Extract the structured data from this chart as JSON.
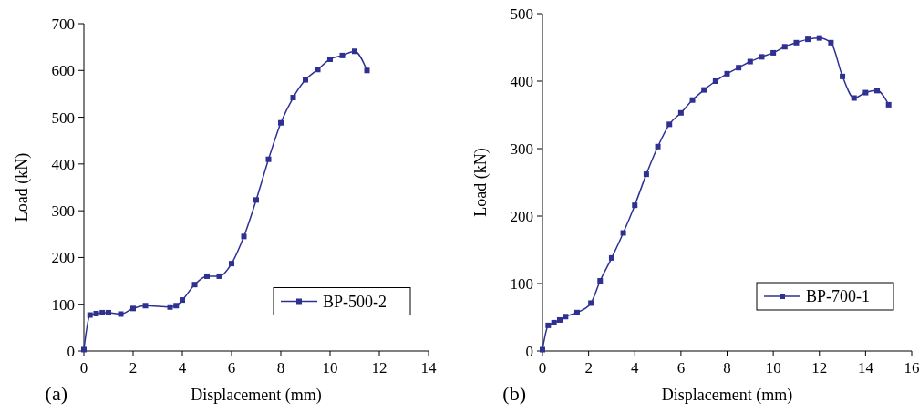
{
  "chart_data": [
    {
      "type": "line",
      "xlabel": "Displacement (mm)",
      "ylabel": "Load (kN)",
      "annotations": [
        "(a)"
      ],
      "xlim": [
        0,
        14
      ],
      "xticks": [
        0,
        2,
        4,
        6,
        8,
        10,
        12,
        14
      ],
      "ylim": [
        0,
        700
      ],
      "yticks": [
        0,
        100,
        200,
        300,
        400,
        500,
        600,
        700
      ],
      "legend": "right",
      "marker": "square",
      "grid": false,
      "series": [
        {
          "name": "BP-500-2",
          "color": "#2e3192",
          "x": [
            0,
            0.25,
            0.5,
            0.75,
            1,
            1.5,
            2,
            2.5,
            3.5,
            3.75,
            4,
            4.5,
            5,
            5.5,
            6,
            6.5,
            7,
            7.5,
            8,
            8.5,
            9,
            9.5,
            10,
            10.5,
            11,
            11.5
          ],
          "values": [
            3,
            77,
            80,
            82,
            82,
            79,
            91,
            97,
            94,
            97,
            109,
            142,
            160,
            160,
            187,
            245,
            323,
            410,
            488,
            542,
            580,
            602,
            624,
            632,
            641,
            600
          ]
        }
      ]
    },
    {
      "type": "line",
      "xlabel": "Displacement (mm)",
      "ylabel": "Load (kN)",
      "annotations": [
        "(b)"
      ],
      "xlim": [
        0,
        16
      ],
      "xticks": [
        0,
        2,
        4,
        6,
        8,
        10,
        12,
        14,
        16
      ],
      "ylim": [
        0,
        500
      ],
      "yticks": [
        0,
        100,
        200,
        300,
        400,
        500
      ],
      "legend": "right",
      "marker": "square",
      "grid": false,
      "series": [
        {
          "name": "BP-700-1",
          "color": "#2e3192",
          "x": [
            0,
            0.25,
            0.5,
            0.75,
            1,
            1.5,
            2.1,
            2.5,
            3,
            3.5,
            4,
            4.5,
            5,
            5.5,
            6,
            6.5,
            7,
            7.5,
            8,
            8.5,
            9,
            9.5,
            10,
            10.5,
            11,
            11.5,
            12,
            12.5,
            13,
            13.5,
            14,
            14.5,
            15
          ],
          "values": [
            2,
            38,
            42,
            46,
            51,
            57,
            71,
            104,
            138,
            175,
            216,
            262,
            303,
            336,
            353,
            372,
            387,
            400,
            411,
            420,
            429,
            436,
            442,
            451,
            457,
            462,
            464,
            457,
            407,
            375,
            383,
            386,
            365
          ]
        }
      ]
    }
  ]
}
